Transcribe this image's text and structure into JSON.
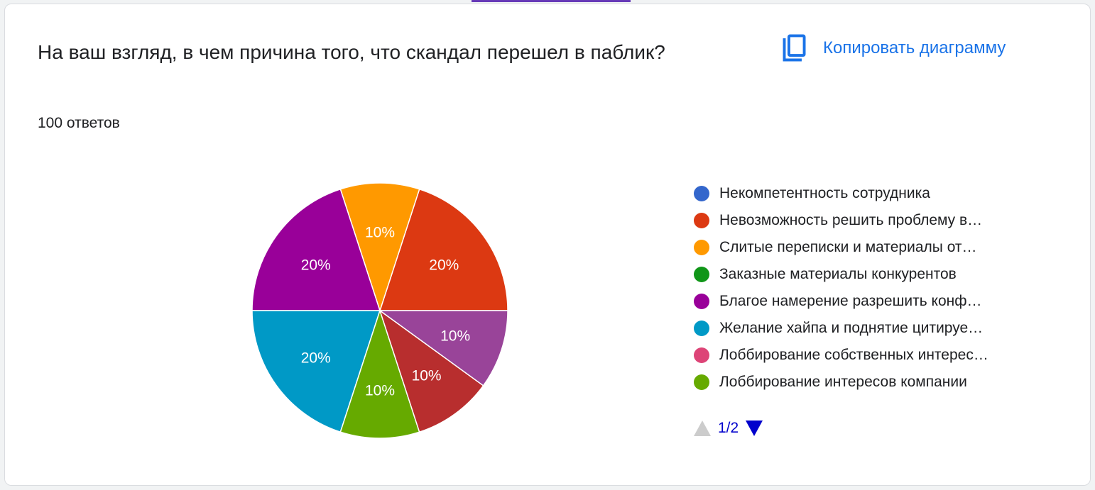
{
  "question": {
    "title": "На ваш взгляд, в чем причина того, что скандал перешел в паблик?",
    "response_count": "100 ответов"
  },
  "toolbar": {
    "copy_label": "Копировать диаграмму",
    "copy_icon": "copy-icon"
  },
  "colors": {
    "accent": "#673ab7",
    "link": "#1a73e8"
  },
  "chart_data": {
    "type": "pie",
    "title": "",
    "legend_position": "right",
    "slices": [
      {
        "name": "Некомпетентность сотрудника",
        "legend_text": "Некомпетентность сотрудника",
        "value": 0,
        "label": "",
        "color": "#3366cc"
      },
      {
        "name": "Невозможность решить проблему в...",
        "legend_text": "Невозможность решить проблему в…",
        "value": 20,
        "label": "20%",
        "color": "#dc3912"
      },
      {
        "name": "Слитые переписки и материалы от...",
        "legend_text": "Слитые переписки и материалы от…",
        "value": 10,
        "label": "10%",
        "color": "#ff9900"
      },
      {
        "name": "Заказные материалы конкурентов",
        "legend_text": "Заказные материалы конкурентов",
        "value": 0,
        "label": "",
        "color": "#109618"
      },
      {
        "name": "Благое намерение разрешить конф...",
        "legend_text": "Благое намерение разрешить конф…",
        "value": 20,
        "label": "20%",
        "color": "#990099"
      },
      {
        "name": "Желание хайпа и поднятие цитируе...",
        "legend_text": "Желание хайпа и поднятие цитируе…",
        "value": 20,
        "label": "20%",
        "color": "#0099c6"
      },
      {
        "name": "Лоббирование собственных интерес...",
        "legend_text": "Лоббирование собственных интерес…",
        "value": 0,
        "label": "",
        "color": "#dd4477"
      },
      {
        "name": "Лоббирование интересов компании",
        "legend_text": "Лоббирование интересов компании",
        "value": 10,
        "label": "10%",
        "color": "#66aa00"
      },
      {
        "name": "",
        "legend_text": "",
        "value": 10,
        "label": "10%",
        "color": "#b82e2e"
      },
      {
        "name": "",
        "legend_text": "",
        "value": 10,
        "label": "10%",
        "color": "#994499"
      }
    ],
    "pie_order": [
      1,
      2,
      4,
      5,
      7,
      8,
      9
    ],
    "pager": {
      "text": "1/2"
    }
  }
}
